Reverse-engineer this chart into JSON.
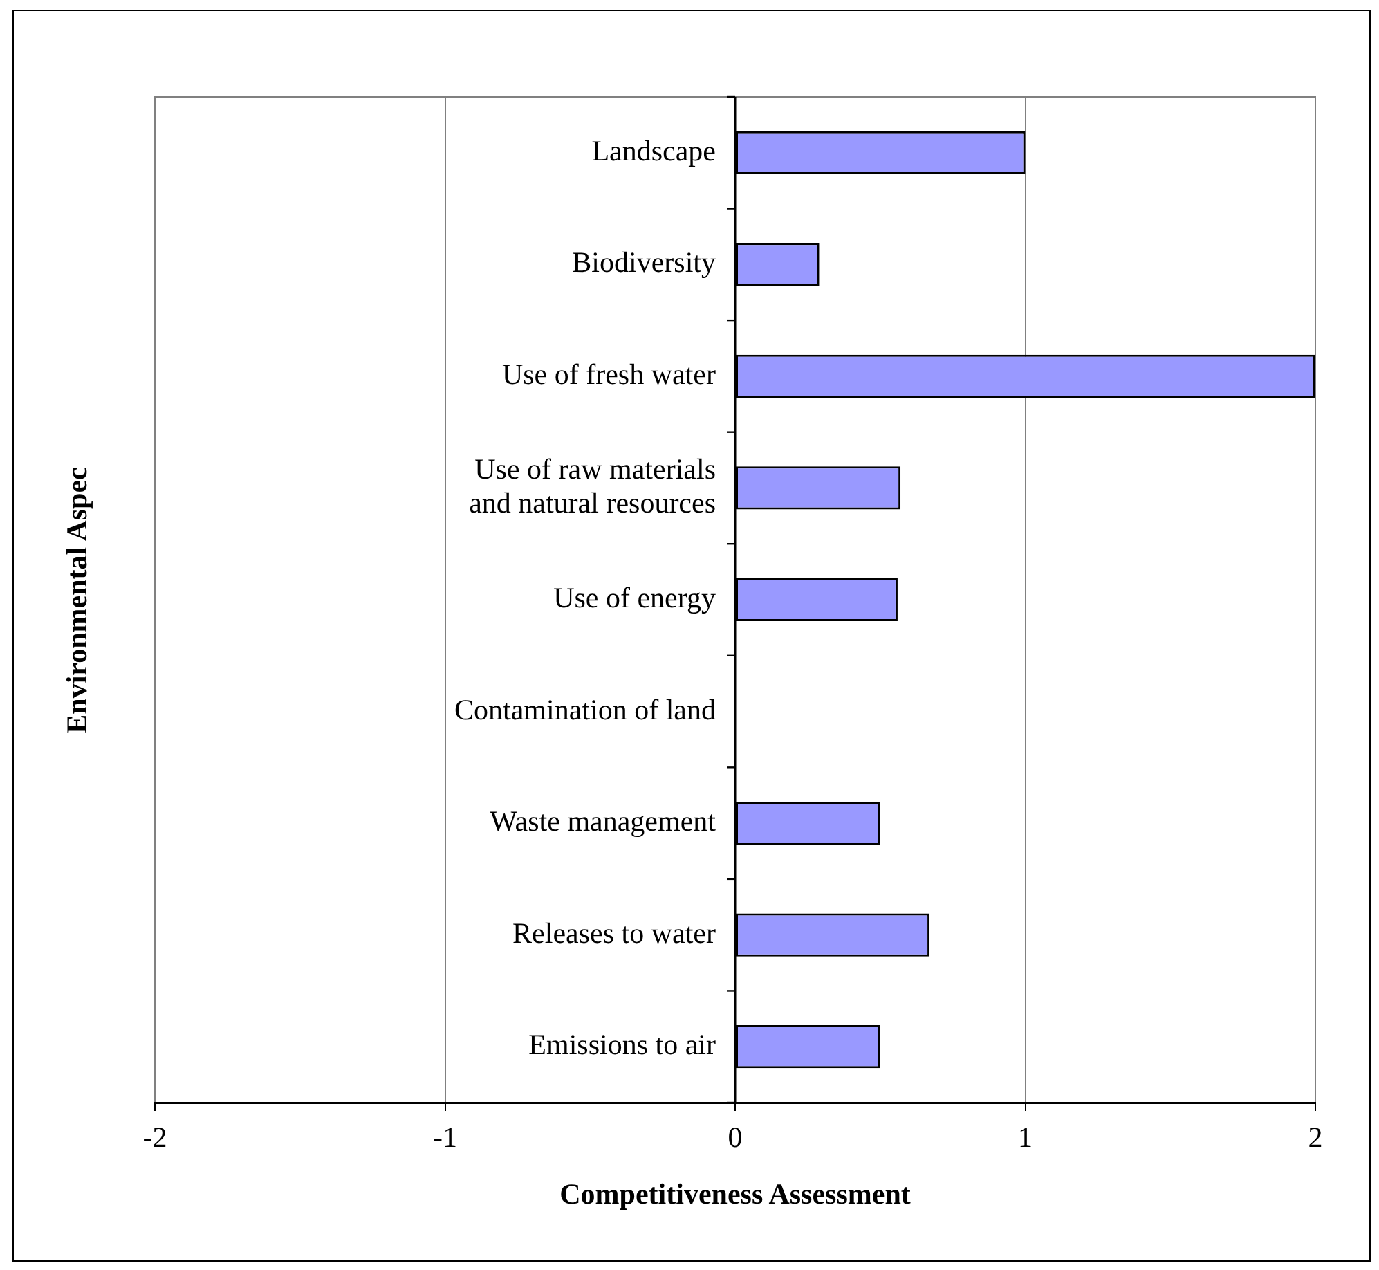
{
  "chart_data": {
    "type": "bar",
    "orientation": "horizontal",
    "xlabel": "Competitiveness Assessment",
    "ylabel": "Environmental Aspec",
    "categories": [
      "Landscape",
      "Biodiversity",
      "Use of fresh water",
      "Use of raw materials and natural resources",
      "Use of energy",
      "Contamination of land",
      "Waste management",
      "Releases to water",
      "Emissions to air"
    ],
    "values": [
      1,
      0.29,
      2,
      0.57,
      0.56,
      0,
      0.5,
      0.67,
      0.5
    ],
    "color": "#9999ff",
    "xlim": [
      -2,
      2
    ],
    "xticks": [
      -2,
      -1,
      0,
      1,
      2
    ],
    "grid": "x"
  }
}
